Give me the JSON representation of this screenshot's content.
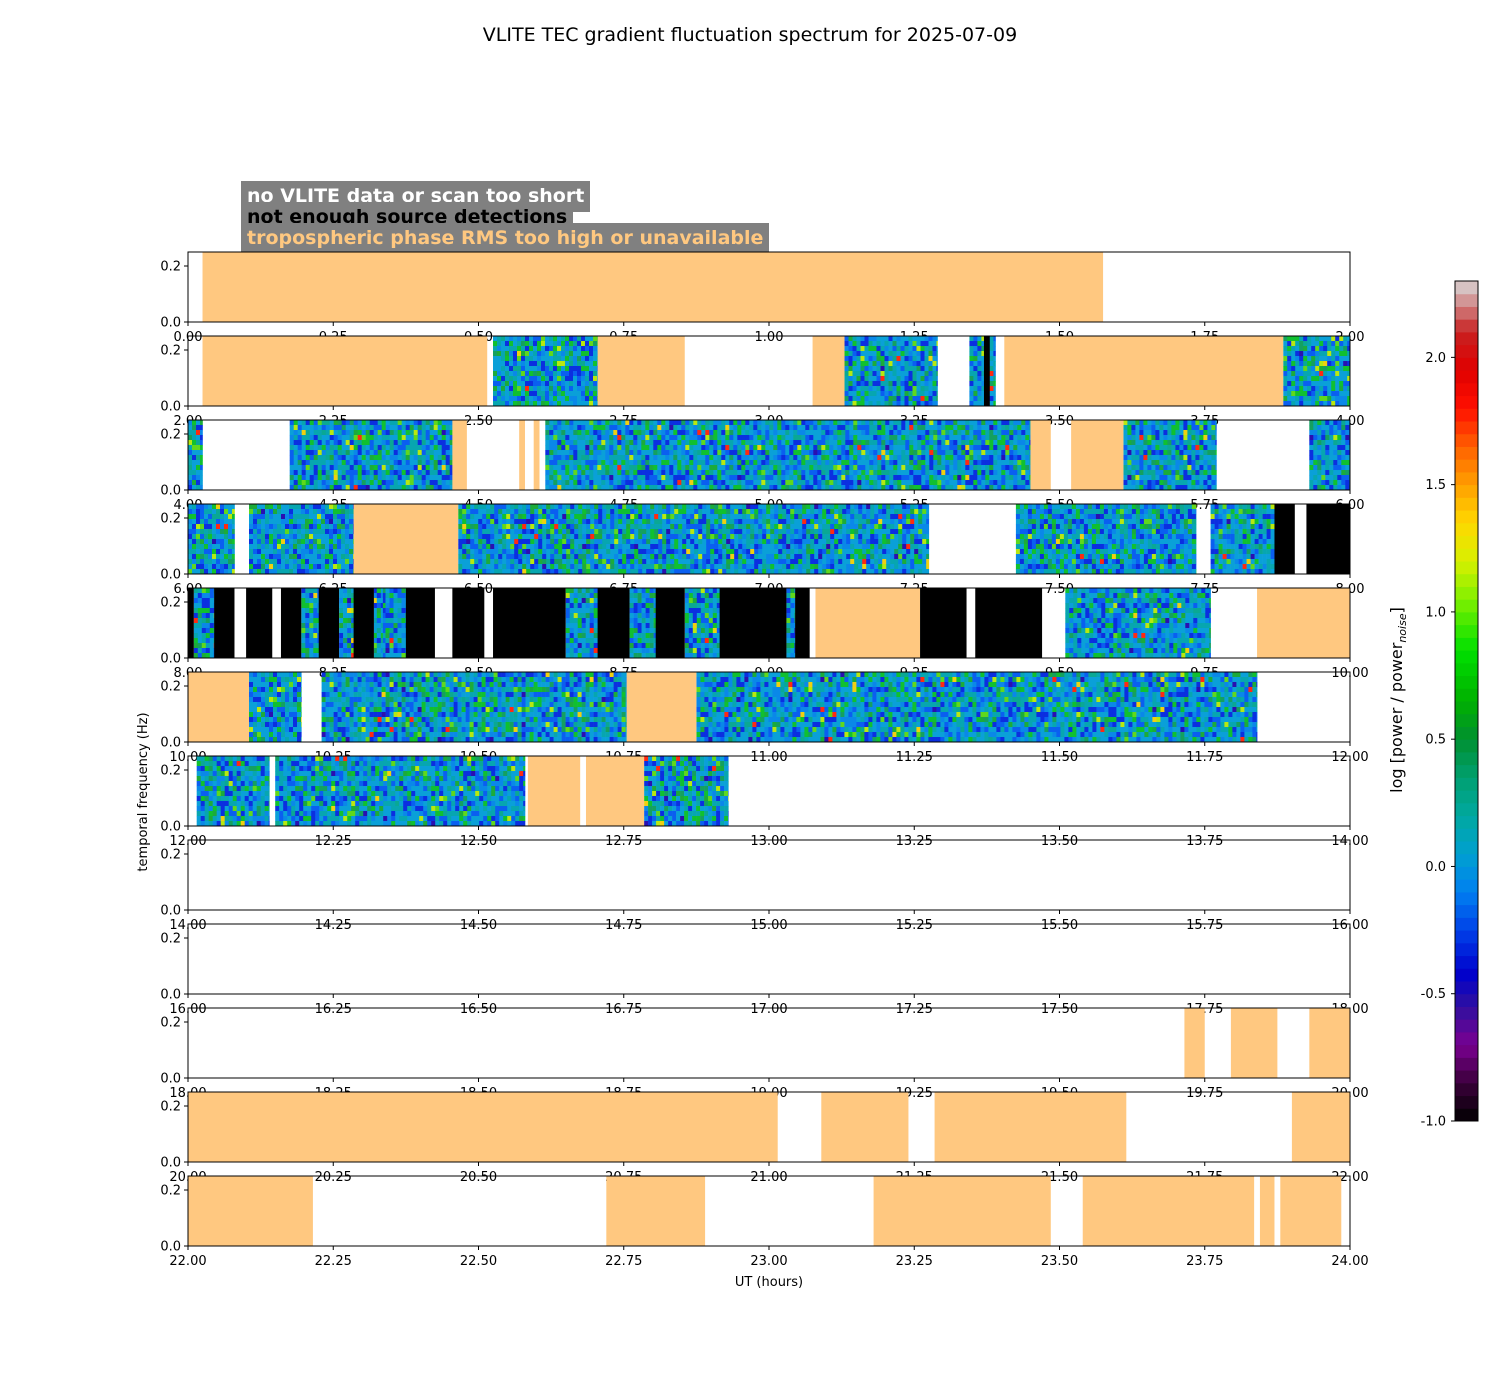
{
  "title": "VLITE TEC gradient fluctuation spectrum for 2025-07-09",
  "legend": [
    {
      "label": "no VLITE data or scan too short",
      "color": "#ffffff"
    },
    {
      "label": "not enough source detections",
      "color": "#000000"
    },
    {
      "label": "tropospheric phase RMS too high or unavailable",
      "color": "#ffc880"
    }
  ],
  "colors": {
    "tropo": "#ffc880",
    "low_det": "#000000",
    "no_data": "#ffffff"
  },
  "chart_data": {
    "type": "heatmap",
    "title": "VLITE TEC gradient fluctuation spectrum for 2025-07-09",
    "xlabel": "UT (hours)",
    "ylabel": "temporal frequency (Hz)",
    "yticks": [
      "0.0",
      "0.2"
    ],
    "ylim": [
      0,
      0.25
    ],
    "colorbar": {
      "label": "log [power / power",
      "label_sub": "noise",
      "label_end": "]",
      "range": [
        -1.0,
        2.3
      ],
      "ticks": [
        "-1.0",
        "-0.5",
        "0.0",
        "0.5",
        "1.0",
        "1.5",
        "2.0"
      ]
    },
    "panels": [
      {
        "range": [
          0,
          2
        ],
        "xticks": [
          "0.00",
          "0.25",
          "0.50",
          "0.75",
          "1.00",
          "1.25",
          "1.50",
          "1.75",
          "2.00"
        ],
        "tropo": [
          [
            0.025,
            1.575
          ]
        ],
        "black": [],
        "data": []
      },
      {
        "range": [
          2,
          4
        ],
        "xticks": [
          "2.00",
          "2.25",
          "2.50",
          "2.75",
          "3.00",
          "3.25",
          "3.50",
          "3.75",
          "4.00"
        ],
        "tropo": [
          [
            2.025,
            2.515
          ],
          [
            2.705,
            2.855
          ],
          [
            3.075,
            3.13
          ],
          [
            3.405,
            3.885
          ]
        ],
        "black": [
          [
            3.37,
            3.38
          ]
        ],
        "data": [
          [
            2.525,
            2.705
          ],
          [
            3.13,
            3.29
          ],
          [
            3.345,
            3.39
          ],
          [
            3.885,
            4.0
          ]
        ]
      },
      {
        "range": [
          4,
          6
        ],
        "xticks": [
          "4.00",
          "4.25",
          "4.50",
          "4.75",
          "5.00",
          "5.25",
          "5.50",
          "5.75",
          "6.00"
        ],
        "tropo": [
          [
            4.455,
            4.48
          ],
          [
            4.57,
            4.58
          ],
          [
            4.595,
            4.605
          ],
          [
            5.45,
            5.485
          ],
          [
            5.52,
            5.61
          ]
        ],
        "black": [],
        "data": [
          [
            4.0,
            4.025
          ],
          [
            4.175,
            4.455
          ],
          [
            4.615,
            5.45
          ],
          [
            5.61,
            5.77
          ],
          [
            5.93,
            6.0
          ]
        ]
      },
      {
        "range": [
          6,
          8
        ],
        "xticks": [
          "6.00",
          "6.25",
          "6.50",
          "6.75",
          "7.00",
          "7.25",
          "7.50",
          "7.75",
          "8.00"
        ],
        "tropo": [
          [
            6.285,
            6.465
          ]
        ],
        "black": [
          [
            7.87,
            7.905
          ],
          [
            7.925,
            8.0
          ]
        ],
        "data": [
          [
            6.0,
            6.08
          ],
          [
            6.105,
            6.285
          ],
          [
            6.465,
            7.275
          ],
          [
            7.425,
            7.735
          ],
          [
            7.76,
            7.87
          ]
        ]
      },
      {
        "range": [
          8,
          10
        ],
        "xticks": [
          "8.00",
          "8.25",
          "8.50",
          "8.75",
          "9.00",
          "9.25",
          "9.50",
          "9.75",
          "10.00"
        ],
        "tropo": [
          [
            9.08,
            9.26
          ],
          [
            9.84,
            10.0
          ]
        ],
        "black": [
          [
            8.0,
            8.01
          ],
          [
            8.045,
            8.08
          ],
          [
            8.1,
            8.145
          ],
          [
            8.16,
            8.195
          ],
          [
            8.225,
            8.26
          ],
          [
            8.285,
            8.32
          ],
          [
            8.375,
            8.425
          ],
          [
            8.455,
            8.51
          ],
          [
            8.525,
            8.65
          ],
          [
            8.705,
            8.76
          ],
          [
            8.805,
            8.855
          ],
          [
            8.915,
            9.03
          ],
          [
            9.045,
            9.07
          ],
          [
            9.26,
            9.34
          ],
          [
            9.355,
            9.47
          ]
        ],
        "data": [
          [
            8.01,
            8.045
          ],
          [
            8.195,
            8.225
          ],
          [
            8.26,
            8.285
          ],
          [
            8.32,
            8.345
          ],
          [
            8.35,
            8.36
          ],
          [
            8.325,
            8.335
          ],
          [
            8.34,
            8.375
          ],
          [
            8.65,
            8.705
          ],
          [
            8.76,
            8.805
          ],
          [
            8.855,
            8.915
          ],
          [
            9.03,
            9.045
          ],
          [
            9.51,
            9.76
          ]
        ]
      },
      {
        "range": [
          10,
          12
        ],
        "xticks": [
          "10.00",
          "10.25",
          "10.50",
          "10.75",
          "11.00",
          "11.25",
          "11.50",
          "11.75",
          "12.00"
        ],
        "tropo": [
          [
            10.0,
            10.105
          ],
          [
            10.755,
            10.875
          ]
        ],
        "black": [],
        "data": [
          [
            10.105,
            10.195
          ],
          [
            10.23,
            10.755
          ],
          [
            10.875,
            11.84
          ]
        ]
      },
      {
        "range": [
          12,
          14
        ],
        "xticks": [
          "12.00",
          "12.25",
          "12.50",
          "12.75",
          "13.00",
          "13.25",
          "13.50",
          "13.75",
          "14.00"
        ],
        "tropo": [
          [
            12.585,
            12.675
          ],
          [
            12.685,
            12.785
          ]
        ],
        "black": [],
        "data": [
          [
            12.015,
            12.14
          ],
          [
            12.15,
            12.58
          ],
          [
            12.785,
            12.93
          ]
        ]
      },
      {
        "range": [
          14,
          16
        ],
        "xticks": [
          "14.00",
          "14.25",
          "14.50",
          "14.75",
          "15.00",
          "15.25",
          "15.50",
          "15.75",
          "16.00"
        ],
        "tropo": [],
        "black": [],
        "data": []
      },
      {
        "range": [
          16,
          18
        ],
        "xticks": [
          "16.00",
          "16.25",
          "16.50",
          "16.75",
          "17.00",
          "17.25",
          "17.50",
          "17.75",
          "18.00"
        ],
        "tropo": [],
        "black": [],
        "data": []
      },
      {
        "range": [
          18,
          20
        ],
        "xticks": [
          "18.00",
          "18.25",
          "18.50",
          "18.75",
          "19.00",
          "19.25",
          "19.50",
          "19.75",
          "20.00"
        ],
        "tropo": [
          [
            19.715,
            19.75
          ],
          [
            19.795,
            19.875
          ],
          [
            19.93,
            20.0
          ]
        ],
        "black": [],
        "data": []
      },
      {
        "range": [
          20,
          22
        ],
        "xticks": [
          "20.00",
          "20.25",
          "20.50",
          "20.75",
          "21.00",
          "21.25",
          "21.50",
          "21.75",
          "22.00"
        ],
        "tropo": [
          [
            20.0,
            21.015
          ],
          [
            21.09,
            21.24
          ],
          [
            21.285,
            21.615
          ],
          [
            21.9,
            22.0
          ]
        ],
        "black": [],
        "data": []
      },
      {
        "range": [
          22,
          24
        ],
        "xticks": [
          "22.00",
          "22.25",
          "22.50",
          "22.75",
          "23.00",
          "23.25",
          "23.50",
          "23.75",
          "24.00"
        ],
        "tropo": [
          [
            22.0,
            22.215
          ],
          [
            22.72,
            22.89
          ],
          [
            23.18,
            23.485
          ],
          [
            23.54,
            23.835
          ],
          [
            23.845,
            23.87
          ],
          [
            23.88,
            23.985
          ]
        ],
        "black": [],
        "data": []
      }
    ]
  }
}
